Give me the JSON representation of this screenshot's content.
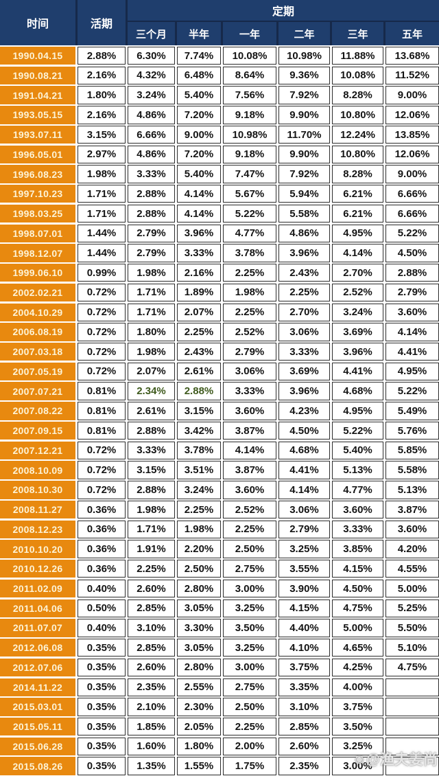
{
  "table": {
    "col_time": "时间",
    "col_demand": "活期",
    "col_fixed_group": "定期",
    "fixed_columns": [
      "三个月",
      "半年",
      "一年",
      "二年",
      "三年",
      "五年"
    ]
  },
  "watermark": {
    "icon": "camera-logo-icon",
    "text": "@渔夫姜尚"
  },
  "colors": {
    "header_navy": "#1f3e6d",
    "header_separator": "#16294a",
    "date_orange": "#e8890f",
    "date_text": "#fdf3d6",
    "cell_border": "#2b2b2b",
    "value_text": "#141414",
    "highlight_green": "#3f5a1d"
  },
  "chart_data": {
    "type": "table",
    "unit": "%",
    "columns": [
      "时间",
      "活期",
      "三个月",
      "半年",
      "一年",
      "二年",
      "三年",
      "五年"
    ],
    "column_groups": {
      "定期": [
        "三个月",
        "半年",
        "一年",
        "二年",
        "三年",
        "五年"
      ]
    },
    "rows": [
      [
        "1990.04.15",
        2.88,
        6.3,
        7.74,
        10.08,
        10.98,
        11.88,
        13.68
      ],
      [
        "1990.08.21",
        2.16,
        4.32,
        6.48,
        8.64,
        9.36,
        10.08,
        11.52
      ],
      [
        "1991.04.21",
        1.8,
        3.24,
        5.4,
        7.56,
        7.92,
        8.28,
        9.0
      ],
      [
        "1993.05.15",
        2.16,
        4.86,
        7.2,
        9.18,
        9.9,
        10.8,
        12.06
      ],
      [
        "1993.07.11",
        3.15,
        6.66,
        9.0,
        10.98,
        11.7,
        12.24,
        13.85
      ],
      [
        "1996.05.01",
        2.97,
        4.86,
        7.2,
        9.18,
        9.9,
        10.8,
        12.06
      ],
      [
        "1996.08.23",
        1.98,
        3.33,
        5.4,
        7.47,
        7.92,
        8.28,
        9.0
      ],
      [
        "1997.10.23",
        1.71,
        2.88,
        4.14,
        5.67,
        5.94,
        6.21,
        6.66
      ],
      [
        "1998.03.25",
        1.71,
        2.88,
        4.14,
        5.22,
        5.58,
        6.21,
        6.66
      ],
      [
        "1998.07.01",
        1.44,
        2.79,
        3.96,
        4.77,
        4.86,
        4.95,
        5.22
      ],
      [
        "1998.12.07",
        1.44,
        2.79,
        3.33,
        3.78,
        3.96,
        4.14,
        4.5
      ],
      [
        "1999.06.10",
        0.99,
        1.98,
        2.16,
        2.25,
        2.43,
        2.7,
        2.88
      ],
      [
        "2002.02.21",
        0.72,
        1.71,
        1.89,
        1.98,
        2.25,
        2.52,
        2.79
      ],
      [
        "2004.10.29",
        0.72,
        1.71,
        2.07,
        2.25,
        2.7,
        3.24,
        3.6
      ],
      [
        "2006.08.19",
        0.72,
        1.8,
        2.25,
        2.52,
        3.06,
        3.69,
        4.14
      ],
      [
        "2007.03.18",
        0.72,
        1.98,
        2.43,
        2.79,
        3.33,
        3.96,
        4.41
      ],
      [
        "2007.05.19",
        0.72,
        2.07,
        2.61,
        3.06,
        3.69,
        4.41,
        4.95
      ],
      [
        "2007.07.21",
        0.81,
        2.34,
        2.88,
        3.33,
        3.96,
        4.68,
        5.22
      ],
      [
        "2007.08.22",
        0.81,
        2.61,
        3.15,
        3.6,
        4.23,
        4.95,
        5.49
      ],
      [
        "2007.09.15",
        0.81,
        2.88,
        3.42,
        3.87,
        4.5,
        5.22,
        5.76
      ],
      [
        "2007.12.21",
        0.72,
        3.33,
        3.78,
        4.14,
        4.68,
        5.4,
        5.85
      ],
      [
        "2008.10.09",
        0.72,
        3.15,
        3.51,
        3.87,
        4.41,
        5.13,
        5.58
      ],
      [
        "2008.10.30",
        0.72,
        2.88,
        3.24,
        3.6,
        4.14,
        4.77,
        5.13
      ],
      [
        "2008.11.27",
        0.36,
        1.98,
        2.25,
        2.52,
        3.06,
        3.6,
        3.87
      ],
      [
        "2008.12.23",
        0.36,
        1.71,
        1.98,
        2.25,
        2.79,
        3.33,
        3.6
      ],
      [
        "2010.10.20",
        0.36,
        1.91,
        2.2,
        2.5,
        3.25,
        3.85,
        4.2
      ],
      [
        "2010.12.26",
        0.36,
        2.25,
        2.5,
        2.75,
        3.55,
        4.15,
        4.55
      ],
      [
        "2011.02.09",
        0.4,
        2.6,
        2.8,
        3.0,
        3.9,
        4.5,
        5.0
      ],
      [
        "2011.04.06",
        0.5,
        2.85,
        3.05,
        3.25,
        4.15,
        4.75,
        5.25
      ],
      [
        "2011.07.07",
        0.4,
        3.1,
        3.3,
        3.5,
        4.4,
        5.0,
        5.5
      ],
      [
        "2012.06.08",
        0.35,
        2.85,
        3.05,
        3.25,
        4.1,
        4.65,
        5.1
      ],
      [
        "2012.07.06",
        0.35,
        2.6,
        2.8,
        3.0,
        3.75,
        4.25,
        4.75
      ],
      [
        "2014.11.22",
        0.35,
        2.35,
        2.55,
        2.75,
        3.35,
        4.0,
        null
      ],
      [
        "2015.03.01",
        0.35,
        2.1,
        2.3,
        2.5,
        3.1,
        3.75,
        null
      ],
      [
        "2015.05.11",
        0.35,
        1.85,
        2.05,
        2.25,
        2.85,
        3.5,
        null
      ],
      [
        "2015.06.28",
        0.35,
        1.6,
        1.8,
        2.0,
        2.6,
        3.25,
        null
      ],
      [
        "2015.08.26",
        0.35,
        1.35,
        1.55,
        1.75,
        2.35,
        3.0,
        null
      ]
    ],
    "green_cells": [
      {
        "row": 17,
        "cols": [
          2,
          3
        ]
      }
    ]
  }
}
